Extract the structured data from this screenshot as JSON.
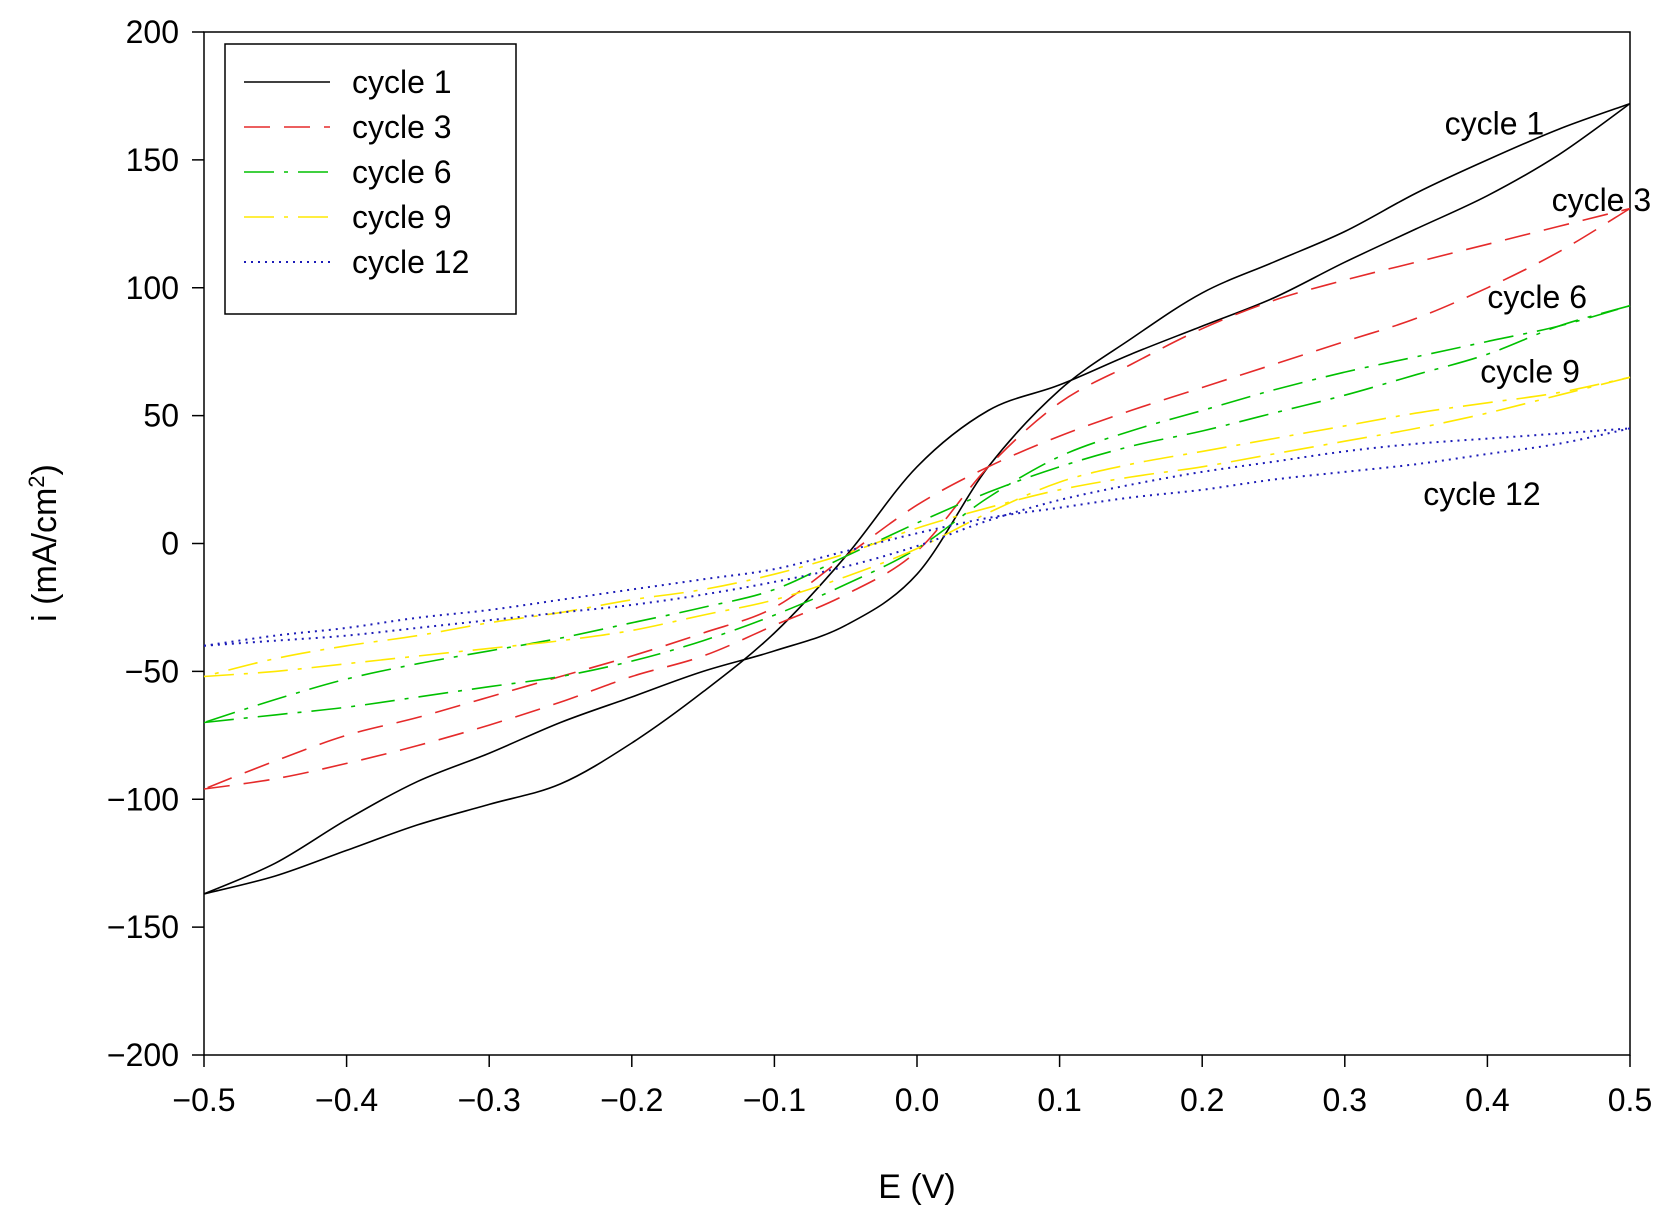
{
  "chart_data": {
    "type": "line",
    "title": "",
    "xlabel": "E (V)",
    "ylabel_main": "i (mA/cm",
    "ylabel_sup": "2",
    "ylabel_close": ")",
    "xlim": [
      -0.5,
      0.5
    ],
    "ylim": [
      -200,
      200
    ],
    "xticks": [
      -0.5,
      -0.4,
      -0.3,
      -0.2,
      -0.1,
      0.0,
      0.1,
      0.2,
      0.3,
      0.4,
      0.5
    ],
    "xtick_labels": [
      "−0.5",
      "−0.4",
      "−0.3",
      "−0.2",
      "−0.1",
      "0.0",
      "0.1",
      "0.2",
      "0.3",
      "0.4",
      "0.5"
    ],
    "yticks": [
      200,
      150,
      100,
      50,
      0,
      -50,
      -100,
      -150,
      -200
    ],
    "ytick_labels": [
      "200",
      "150",
      "100",
      "50",
      "0",
      "−50",
      "−100",
      "−150",
      "−200"
    ],
    "grid": false,
    "legend_position": "top-left",
    "series": [
      {
        "name": "cycle 1",
        "color": "#000000",
        "dash": "solid",
        "forward": [
          [
            -0.5,
            -137
          ],
          [
            -0.45,
            -125
          ],
          [
            -0.4,
            -108
          ],
          [
            -0.35,
            -93
          ],
          [
            -0.3,
            -82
          ],
          [
            -0.25,
            -70
          ],
          [
            -0.2,
            -60
          ],
          [
            -0.15,
            -50
          ],
          [
            -0.1,
            -42
          ],
          [
            -0.05,
            -32
          ],
          [
            0.0,
            -12
          ],
          [
            0.05,
            30
          ],
          [
            0.1,
            60
          ],
          [
            0.15,
            80
          ],
          [
            0.2,
            98
          ],
          [
            0.25,
            110
          ],
          [
            0.3,
            122
          ],
          [
            0.35,
            137
          ],
          [
            0.4,
            150
          ],
          [
            0.45,
            162
          ],
          [
            0.5,
            172
          ]
        ],
        "reverse": [
          [
            0.5,
            172
          ],
          [
            0.45,
            152
          ],
          [
            0.4,
            136
          ],
          [
            0.35,
            123
          ],
          [
            0.3,
            110
          ],
          [
            0.25,
            96
          ],
          [
            0.2,
            85
          ],
          [
            0.15,
            74
          ],
          [
            0.1,
            62
          ],
          [
            0.05,
            52
          ],
          [
            0.0,
            30
          ],
          [
            -0.05,
            -5
          ],
          [
            -0.1,
            -35
          ],
          [
            -0.15,
            -58
          ],
          [
            -0.2,
            -78
          ],
          [
            -0.25,
            -94
          ],
          [
            -0.3,
            -102
          ],
          [
            -0.35,
            -110
          ],
          [
            -0.4,
            -120
          ],
          [
            -0.45,
            -130
          ],
          [
            -0.5,
            -137
          ]
        ]
      },
      {
        "name": "cycle 3",
        "color": "#e52a2a",
        "dash": "long-dash",
        "forward": [
          [
            -0.5,
            -96
          ],
          [
            -0.45,
            -92
          ],
          [
            -0.4,
            -86
          ],
          [
            -0.35,
            -79
          ],
          [
            -0.3,
            -71
          ],
          [
            -0.25,
            -62
          ],
          [
            -0.2,
            -52
          ],
          [
            -0.15,
            -44
          ],
          [
            -0.1,
            -32
          ],
          [
            -0.05,
            -20
          ],
          [
            0.0,
            -3
          ],
          [
            0.05,
            30
          ],
          [
            0.1,
            55
          ],
          [
            0.15,
            70
          ],
          [
            0.2,
            84
          ],
          [
            0.25,
            95
          ],
          [
            0.3,
            103
          ],
          [
            0.35,
            110
          ],
          [
            0.4,
            117
          ],
          [
            0.45,
            124
          ],
          [
            0.5,
            131
          ]
        ],
        "reverse": [
          [
            0.5,
            131
          ],
          [
            0.45,
            114
          ],
          [
            0.4,
            100
          ],
          [
            0.35,
            88
          ],
          [
            0.3,
            79
          ],
          [
            0.25,
            70
          ],
          [
            0.2,
            61
          ],
          [
            0.15,
            52
          ],
          [
            0.1,
            42
          ],
          [
            0.05,
            30
          ],
          [
            0.0,
            15
          ],
          [
            -0.05,
            -5
          ],
          [
            -0.1,
            -25
          ],
          [
            -0.15,
            -35
          ],
          [
            -0.2,
            -44
          ],
          [
            -0.25,
            -52
          ],
          [
            -0.3,
            -60
          ],
          [
            -0.35,
            -68
          ],
          [
            -0.4,
            -75
          ],
          [
            -0.45,
            -85
          ],
          [
            -0.5,
            -96
          ]
        ]
      },
      {
        "name": "cycle 6",
        "color": "#00c000",
        "dash": "dash-dot",
        "forward": [
          [
            -0.5,
            -70
          ],
          [
            -0.45,
            -67
          ],
          [
            -0.4,
            -64
          ],
          [
            -0.35,
            -60
          ],
          [
            -0.3,
            -56
          ],
          [
            -0.25,
            -52
          ],
          [
            -0.2,
            -46
          ],
          [
            -0.15,
            -38
          ],
          [
            -0.1,
            -28
          ],
          [
            -0.05,
            -16
          ],
          [
            0.0,
            -2
          ],
          [
            0.05,
            18
          ],
          [
            0.1,
            34
          ],
          [
            0.15,
            44
          ],
          [
            0.2,
            52
          ],
          [
            0.25,
            60
          ],
          [
            0.3,
            67
          ],
          [
            0.35,
            73
          ],
          [
            0.4,
            79
          ],
          [
            0.45,
            85
          ],
          [
            0.5,
            93
          ]
        ],
        "reverse": [
          [
            0.5,
            93
          ],
          [
            0.45,
            85
          ],
          [
            0.4,
            74
          ],
          [
            0.35,
            66
          ],
          [
            0.3,
            58
          ],
          [
            0.25,
            51
          ],
          [
            0.2,
            44
          ],
          [
            0.15,
            38
          ],
          [
            0.1,
            30
          ],
          [
            0.05,
            20
          ],
          [
            0.0,
            8
          ],
          [
            -0.05,
            -5
          ],
          [
            -0.1,
            -18
          ],
          [
            -0.15,
            -25
          ],
          [
            -0.2,
            -31
          ],
          [
            -0.25,
            -37
          ],
          [
            -0.3,
            -42
          ],
          [
            -0.35,
            -47
          ],
          [
            -0.4,
            -53
          ],
          [
            -0.45,
            -61
          ],
          [
            -0.5,
            -70
          ]
        ]
      },
      {
        "name": "cycle 9",
        "color": "#ffe800",
        "dash": "dash-dot",
        "forward": [
          [
            -0.5,
            -52
          ],
          [
            -0.45,
            -50
          ],
          [
            -0.4,
            -47
          ],
          [
            -0.35,
            -44
          ],
          [
            -0.3,
            -41
          ],
          [
            -0.25,
            -38
          ],
          [
            -0.2,
            -34
          ],
          [
            -0.15,
            -28
          ],
          [
            -0.1,
            -22
          ],
          [
            -0.05,
            -13
          ],
          [
            0.0,
            -2
          ],
          [
            0.05,
            12
          ],
          [
            0.1,
            24
          ],
          [
            0.15,
            31
          ],
          [
            0.2,
            36
          ],
          [
            0.25,
            41
          ],
          [
            0.3,
            46
          ],
          [
            0.35,
            51
          ],
          [
            0.4,
            55
          ],
          [
            0.45,
            59
          ],
          [
            0.5,
            65
          ]
        ],
        "reverse": [
          [
            0.5,
            65
          ],
          [
            0.45,
            58
          ],
          [
            0.4,
            51
          ],
          [
            0.35,
            45
          ],
          [
            0.3,
            40
          ],
          [
            0.25,
            35
          ],
          [
            0.2,
            30
          ],
          [
            0.15,
            26
          ],
          [
            0.1,
            21
          ],
          [
            0.05,
            14
          ],
          [
            0.0,
            6
          ],
          [
            -0.05,
            -4
          ],
          [
            -0.1,
            -12
          ],
          [
            -0.15,
            -18
          ],
          [
            -0.2,
            -22
          ],
          [
            -0.25,
            -27
          ],
          [
            -0.3,
            -31
          ],
          [
            -0.35,
            -36
          ],
          [
            -0.4,
            -40
          ],
          [
            -0.45,
            -45
          ],
          [
            -0.5,
            -52
          ]
        ]
      },
      {
        "name": "cycle 12",
        "color": "#1c1cb8",
        "dash": "dotted",
        "forward": [
          [
            -0.5,
            -40
          ],
          [
            -0.45,
            -38
          ],
          [
            -0.4,
            -36
          ],
          [
            -0.35,
            -33
          ],
          [
            -0.3,
            -30
          ],
          [
            -0.25,
            -27
          ],
          [
            -0.2,
            -24
          ],
          [
            -0.15,
            -20
          ],
          [
            -0.1,
            -15
          ],
          [
            -0.05,
            -9
          ],
          [
            0.0,
            -1
          ],
          [
            0.05,
            9
          ],
          [
            0.1,
            17
          ],
          [
            0.15,
            23
          ],
          [
            0.2,
            28
          ],
          [
            0.25,
            32
          ],
          [
            0.3,
            36
          ],
          [
            0.35,
            39
          ],
          [
            0.4,
            41
          ],
          [
            0.45,
            43
          ],
          [
            0.5,
            45
          ]
        ],
        "reverse": [
          [
            0.5,
            45
          ],
          [
            0.45,
            39
          ],
          [
            0.4,
            35
          ],
          [
            0.35,
            31
          ],
          [
            0.3,
            28
          ],
          [
            0.25,
            25
          ],
          [
            0.2,
            21
          ],
          [
            0.15,
            18
          ],
          [
            0.1,
            14
          ],
          [
            0.05,
            10
          ],
          [
            0.0,
            4
          ],
          [
            -0.05,
            -3
          ],
          [
            -0.1,
            -10
          ],
          [
            -0.15,
            -14
          ],
          [
            -0.2,
            -18
          ],
          [
            -0.25,
            -22
          ],
          [
            -0.3,
            -26
          ],
          [
            -0.35,
            -29
          ],
          [
            -0.4,
            -33
          ],
          [
            -0.45,
            -36
          ],
          [
            -0.5,
            -40
          ]
        ]
      }
    ],
    "annotations": [
      {
        "text": "cycle 1",
        "x": 0.37,
        "y": 160
      },
      {
        "text": "cycle 3",
        "x": 0.445,
        "y": 130
      },
      {
        "text": "cycle 6",
        "x": 0.4,
        "y": 92
      },
      {
        "text": "cycle 9",
        "x": 0.395,
        "y": 63
      },
      {
        "text": "cycle 12",
        "x": 0.355,
        "y": 15
      }
    ]
  }
}
